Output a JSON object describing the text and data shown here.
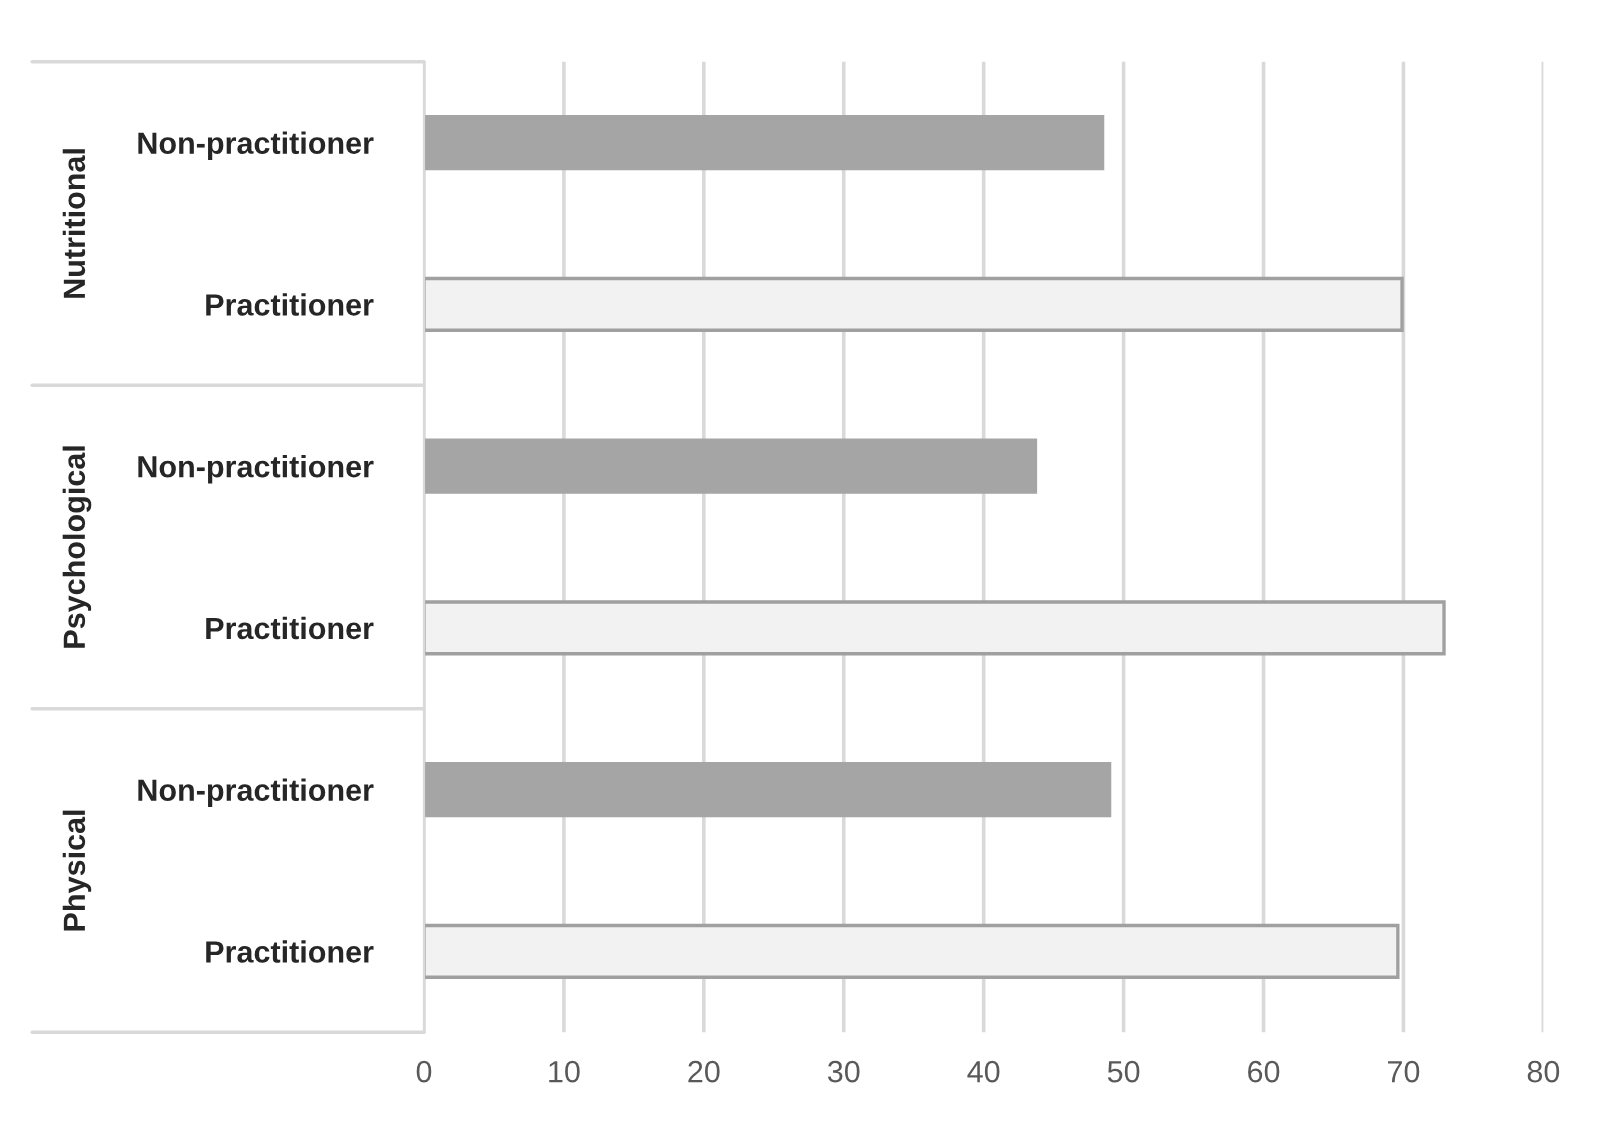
{
  "chart_data": {
    "type": "bar",
    "orientation": "horizontal",
    "categories": [
      "Non-practitioner",
      "Practitioner",
      "Non-practitioner",
      "Practitioner",
      "Non-practitioner",
      "Practitioner"
    ],
    "values": [
      48.5,
      69.9,
      43.7,
      72.9,
      49.0,
      69.6
    ],
    "colors": [
      "#a5a5a5",
      "#f2f2f2",
      "#a5a5a5",
      "#f2f2f2",
      "#a5a5a5",
      "#f2f2f2"
    ],
    "annotations": [
      "Nutritional",
      "Psychological",
      "Physical"
    ],
    "xlim": [
      0,
      80
    ],
    "xticks": [
      0,
      10,
      20,
      30,
      40,
      50,
      60,
      70,
      80
    ],
    "grid": "x",
    "legend": false
  }
}
